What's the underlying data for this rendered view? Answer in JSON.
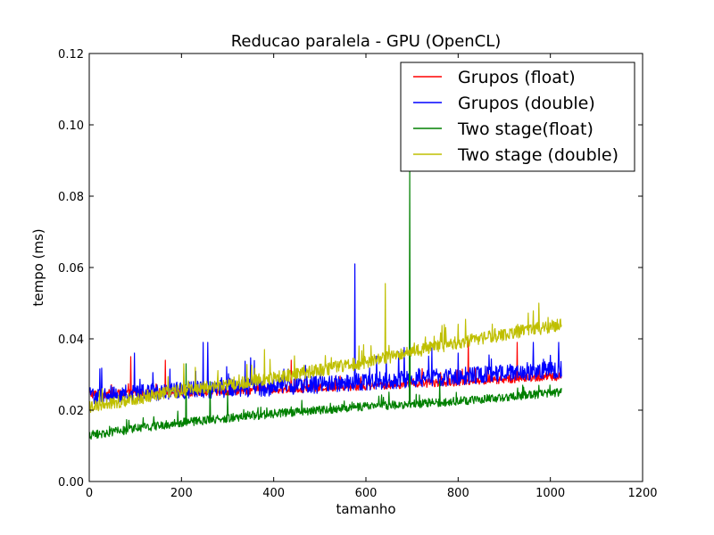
{
  "chart_data": {
    "type": "line",
    "title": "Reducao paralela - GPU (OpenCL)",
    "xlabel": "tamanho",
    "ylabel": "tempo (ms)",
    "xlim": [
      0,
      1200
    ],
    "ylim": [
      0,
      0.12
    ],
    "xticks": [
      "0",
      "200",
      "400",
      "600",
      "800",
      "1000",
      "1200"
    ],
    "yticks": [
      "0.00",
      "0.02",
      "0.04",
      "0.06",
      "0.08",
      "0.10",
      "0.12"
    ],
    "grid": false,
    "legend_position": "top-right",
    "x": {
      "start": 1,
      "end": 1024,
      "step": 1
    },
    "series": [
      {
        "name": "Grupos (float)",
        "color": "#ff0000",
        "trend": [
          [
            1,
            0.0245
          ],
          [
            200,
            0.025
          ],
          [
            400,
            0.0258
          ],
          [
            600,
            0.0268
          ],
          [
            800,
            0.028
          ],
          [
            1024,
            0.0295
          ]
        ],
        "noise": 0.0012,
        "spikes": [
          [
            90,
            0.035
          ],
          [
            165,
            0.034
          ],
          [
            438,
            0.034
          ],
          [
            822,
            0.04
          ],
          [
            928,
            0.039
          ],
          [
            975,
            0.032
          ]
        ]
      },
      {
        "name": "Grupos (double)",
        "color": "#0000ff",
        "trend": [
          [
            1,
            0.024
          ],
          [
            200,
            0.0255
          ],
          [
            400,
            0.0265
          ],
          [
            600,
            0.028
          ],
          [
            800,
            0.0295
          ],
          [
            1024,
            0.0315
          ]
        ],
        "noise": 0.0025,
        "spikes": [
          [
            98,
            0.036
          ],
          [
            247,
            0.039
          ],
          [
            257,
            0.039
          ],
          [
            576,
            0.061
          ],
          [
            800,
            0.036
          ],
          [
            963,
            0.039
          ],
          [
            1018,
            0.039
          ]
        ]
      },
      {
        "name": "Two stage(float)",
        "color": "#008000",
        "trend": [
          [
            1,
            0.013
          ],
          [
            200,
            0.0165
          ],
          [
            400,
            0.019
          ],
          [
            600,
            0.021
          ],
          [
            800,
            0.0225
          ],
          [
            1024,
            0.025
          ]
        ],
        "noise": 0.0012,
        "spikes": [
          [
            210,
            0.033
          ],
          [
            262,
            0.028
          ],
          [
            300,
            0.025
          ],
          [
            695,
            0.088
          ],
          [
            760,
            0.028
          ],
          [
            940,
            0.027
          ]
        ]
      },
      {
        "name": "Two stage (double)",
        "color": "#bfbf00",
        "trend": [
          [
            1,
            0.021
          ],
          [
            200,
            0.0255
          ],
          [
            400,
            0.029
          ],
          [
            600,
            0.0335
          ],
          [
            800,
            0.039
          ],
          [
            1024,
            0.044
          ]
        ],
        "noise": 0.0018,
        "spikes": [
          [
            205,
            0.033
          ],
          [
            230,
            0.032
          ],
          [
            380,
            0.037
          ],
          [
            642,
            0.0555
          ],
          [
            770,
            0.044
          ],
          [
            975,
            0.05
          ]
        ]
      }
    ]
  }
}
